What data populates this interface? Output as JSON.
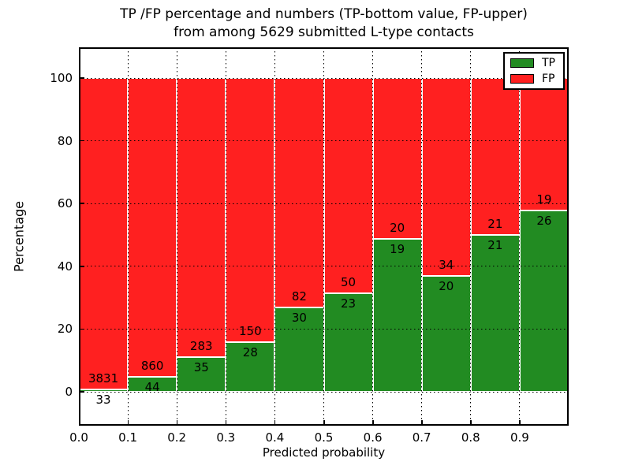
{
  "title": {
    "line1": "TP /FP percentage and numbers (TP-bottom value, FP-upper)",
    "line2": "from among 5629 submitted L-type contacts"
  },
  "x_axis": {
    "label": "Predicted probability",
    "tick_labels": [
      "0.0",
      "0.1",
      "0.2",
      "0.3",
      "0.4",
      "0.5",
      "0.6",
      "0.7",
      "0.8",
      "0.9"
    ]
  },
  "y_axis": {
    "label": "Percentage",
    "tick_values": [
      0,
      20,
      40,
      60,
      80,
      100
    ]
  },
  "legend": {
    "position": "upper right",
    "items": [
      {
        "label": "TP",
        "color": "#228B22"
      },
      {
        "label": "FP",
        "color": "#FF2020"
      }
    ]
  },
  "colors": {
    "tp": "#228B22",
    "fp": "#FF2020",
    "bar_edge": "#ffffff",
    "grid": "#000000",
    "spine": "#000000",
    "background": "#ffffff",
    "text": "#000000"
  },
  "chart_data": {
    "type": "bar",
    "stacked": true,
    "normalized": "each 0.1-wide probability bin scaled to 100%",
    "title": "TP /FP percentage and numbers (TP-bottom value, FP-upper) from among 5629 submitted L-type contacts",
    "xlabel": "Predicted probability",
    "ylabel": "Percentage",
    "total_contacts": 5629,
    "bins_left_edge": [
      0.0,
      0.1,
      0.2,
      0.3,
      0.4,
      0.5,
      0.6,
      0.7,
      0.8,
      0.9
    ],
    "bin_width": 0.1,
    "series": [
      {
        "name": "TP",
        "color": "#228B22",
        "counts": [
          33,
          44,
          35,
          28,
          30,
          23,
          19,
          20,
          21,
          26
        ]
      },
      {
        "name": "FP",
        "color": "#FF2020",
        "counts": [
          3831,
          860,
          283,
          150,
          82,
          50,
          20,
          34,
          21,
          19
        ]
      }
    ],
    "tp_percent_approx": [
      0.85,
      4.87,
      11.01,
      15.73,
      26.79,
      31.51,
      48.72,
      37.04,
      50.0,
      57.78
    ],
    "xlim": [
      0.0,
      1.0
    ],
    "ylim": [
      -10.8,
      109.8
    ],
    "grid": true,
    "grid_style": "dotted",
    "legend_position": "upper right"
  }
}
